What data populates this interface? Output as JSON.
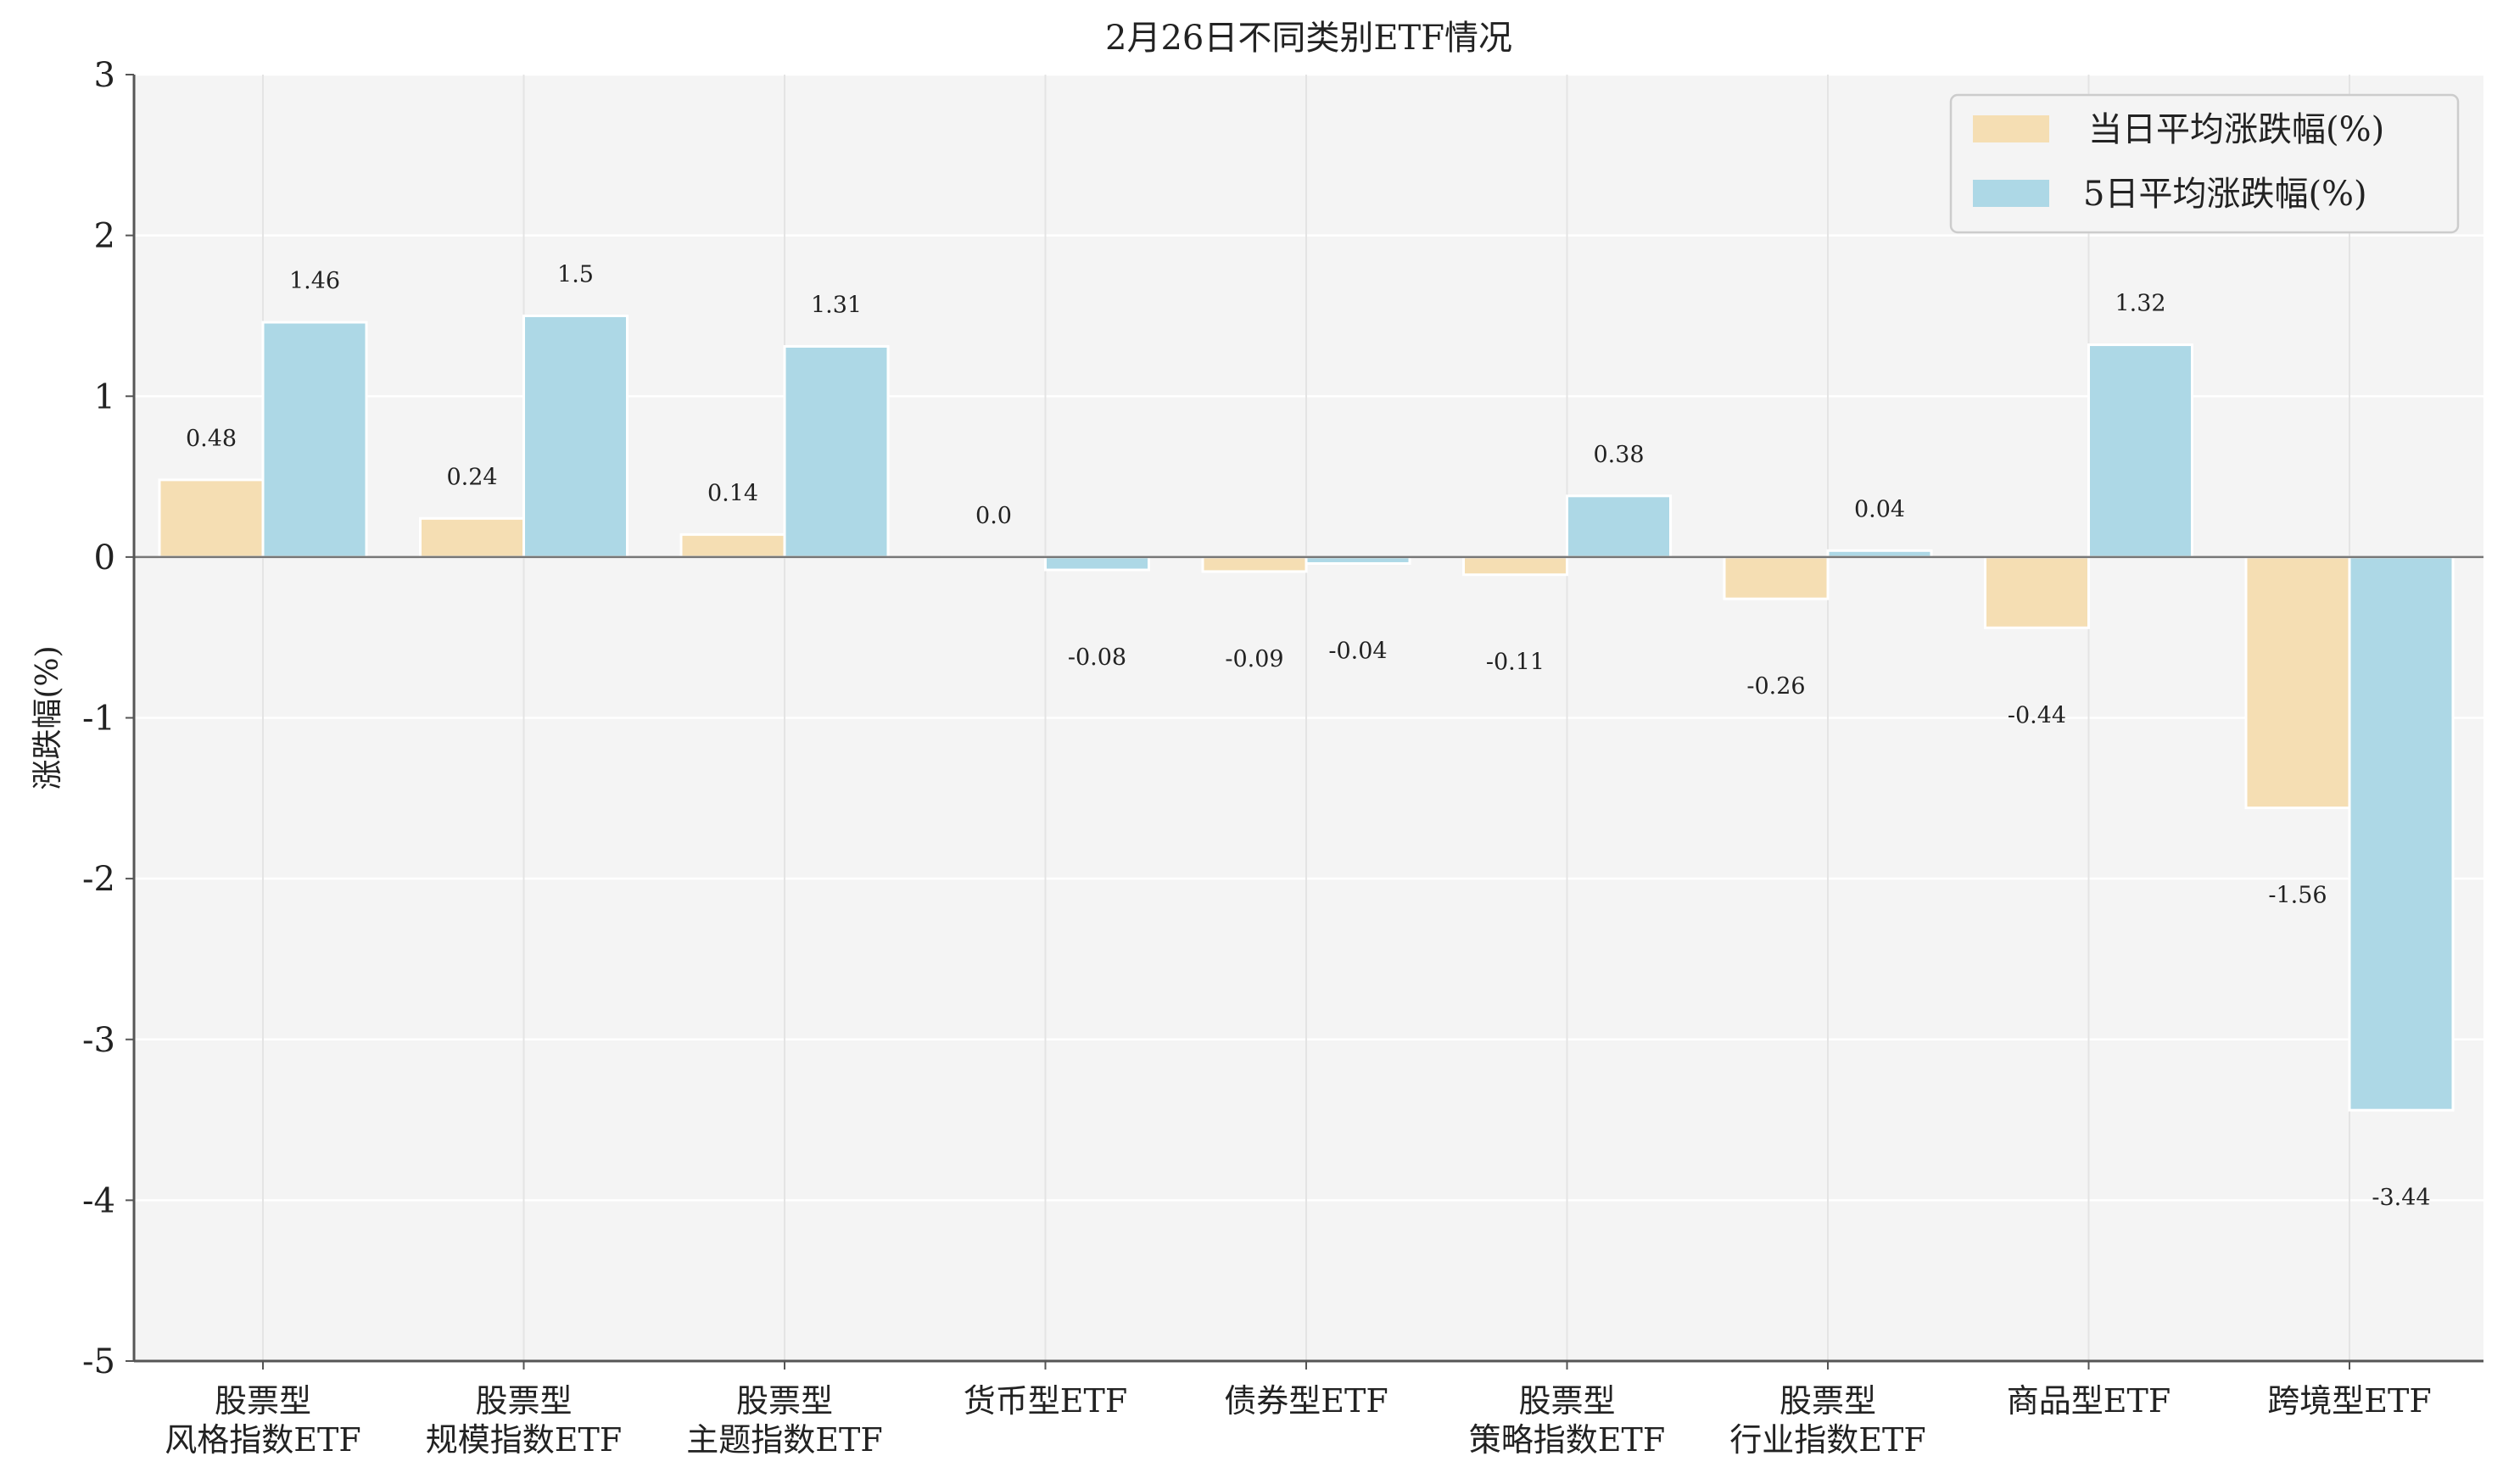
{
  "chart_data": {
    "type": "bar",
    "title": "2月26日不同类别ETF情况",
    "ylabel": "涨跌幅(%)",
    "xlabel": "",
    "ylim": [
      -5,
      3
    ],
    "yticks": [
      3,
      2,
      1,
      0,
      -1,
      -2,
      -3,
      -4,
      -5
    ],
    "grid": true,
    "legend_position": "top-right",
    "categories": [
      [
        "股票型",
        "风格指数ETF"
      ],
      [
        "股票型",
        "规模指数ETF"
      ],
      [
        "股票型",
        "主题指数ETF"
      ],
      [
        "货币型ETF"
      ],
      [
        "债券型ETF"
      ],
      [
        "股票型",
        "策略指数ETF"
      ],
      [
        "股票型",
        "行业指数ETF"
      ],
      [
        "商品型ETF"
      ],
      [
        "跨境型ETF"
      ]
    ],
    "series": [
      {
        "name": "当日平均涨跌幅(%)",
        "color": "#f5deb3",
        "values": [
          0.48,
          0.24,
          0.14,
          0.0,
          -0.09,
          -0.11,
          -0.26,
          -0.44,
          -1.56
        ],
        "labels": [
          "0.48",
          "0.24",
          "0.14",
          "0.0",
          "-0.09",
          "-0.11",
          "-0.26",
          "-0.44",
          "-1.56"
        ]
      },
      {
        "name": "5日平均涨跌幅(%)",
        "color": "#add8e6",
        "values": [
          1.46,
          1.5,
          1.31,
          -0.08,
          -0.04,
          0.38,
          0.04,
          1.32,
          -3.44
        ],
        "labels": [
          "1.46",
          "1.5",
          "1.31",
          "-0.08",
          "-0.04",
          "0.38",
          "0.04",
          "1.32",
          "-3.44"
        ]
      }
    ]
  }
}
